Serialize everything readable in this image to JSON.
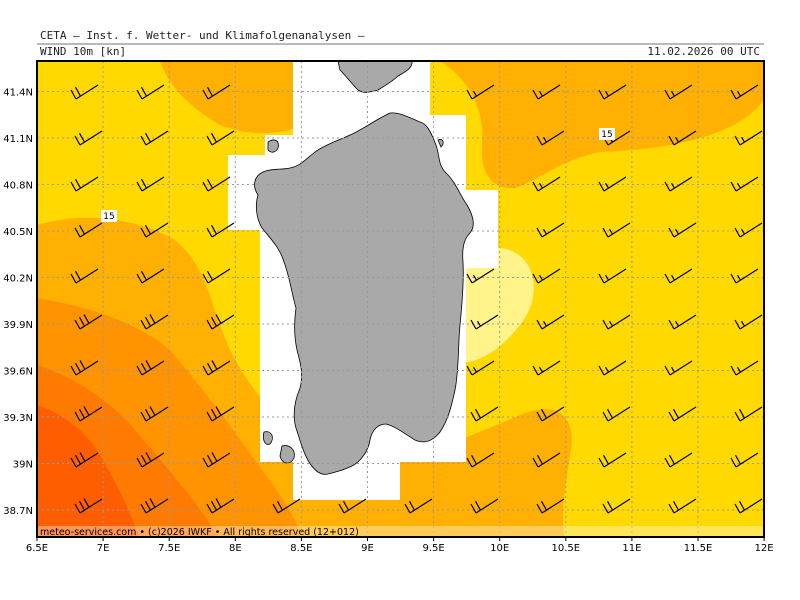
{
  "header": {
    "institute": "CETA — Inst. f. Wetter- und Klimafolgenanalysen —",
    "parameter": "WIND 10m [kn]",
    "timestamp": "11.02.2026 00 UTC"
  },
  "footer": {
    "credit": "meteo-services.com • (c)2026 IWKF • All rights reserved (12+012)"
  },
  "axes": {
    "x_ticks": [
      "6.5E",
      "7E",
      "7.5E",
      "8E",
      "8.5E",
      "9E",
      "9.5E",
      "10E",
      "10.5E",
      "11E",
      "11.5E",
      "12E"
    ],
    "y_ticks": [
      "41.4N",
      "41.1N",
      "40.8N",
      "40.5N",
      "40.2N",
      "39.9N",
      "39.6N",
      "39.3N",
      "39N",
      "38.7N"
    ]
  },
  "isoline_labels": [
    "15",
    "15"
  ],
  "legend_colors": {
    "land": "#a9a9a9",
    "calm": "#ffffff",
    "lt10": "#fff38a",
    "10to15": "#ffd900",
    "15to20": "#ffb000",
    "20to25": "#ff9400",
    "25to30": "#ff7a00",
    "gt30": "#ff5e00"
  }
}
